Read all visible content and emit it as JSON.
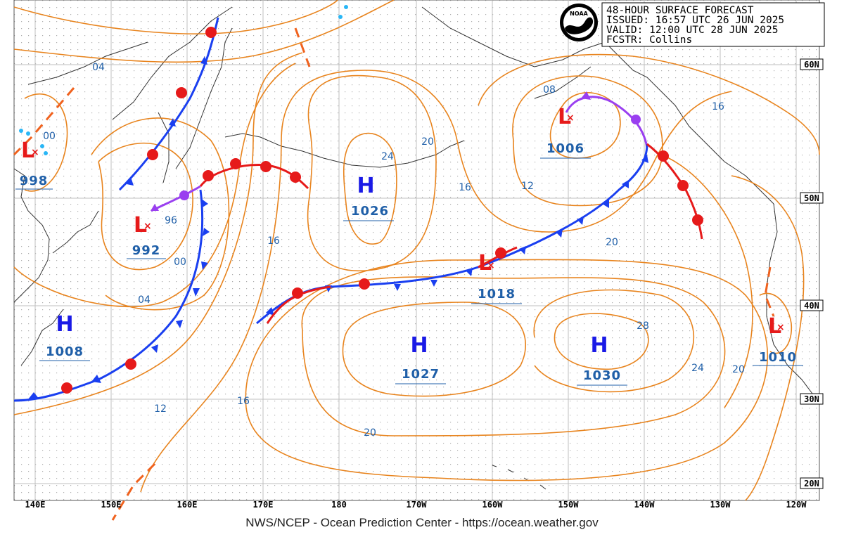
{
  "header": {
    "title": "48-HOUR SURFACE FORECAST",
    "issued": "ISSUED: 16:57 UTC 26 JUN 2025",
    "valid": "VALID:  12:00 UTC 28 JUN 2025",
    "forecaster": "FCSTR:  Collins",
    "logo_text": "NOAA"
  },
  "footer": {
    "credit": "NWS/NCEP - Ocean Prediction Center - https://ocean.weather.gov"
  },
  "grid": {
    "longitudes": [
      "140E",
      "150E",
      "160E",
      "170E",
      "180",
      "170W",
      "160W",
      "150W",
      "140W",
      "130W",
      "120W"
    ],
    "latitudes": [
      "60N",
      "50N",
      "40N",
      "30N",
      "20N"
    ]
  },
  "pressure_systems": [
    {
      "type": "L",
      "pressure": "998"
    },
    {
      "type": "L",
      "pressure": "992"
    },
    {
      "type": "H",
      "pressure": "1008"
    },
    {
      "type": "H",
      "pressure": "1026"
    },
    {
      "type": "H",
      "pressure": "1027"
    },
    {
      "type": "L",
      "pressure": "1018"
    },
    {
      "type": "L",
      "pressure": "1006"
    },
    {
      "type": "H",
      "pressure": "1030"
    },
    {
      "type": "L",
      "pressure": "1010"
    }
  ],
  "isobar_labels": [
    "04",
    "00",
    "96",
    "00",
    "04",
    "12",
    "16",
    "16",
    "24",
    "20",
    "16",
    "12",
    "08",
    "16",
    "20",
    "28",
    "24",
    "20",
    "20"
  ],
  "colors": {
    "isobar": "#e8841e",
    "high": "#1a1ae6",
    "low": "#e61a1a",
    "cold_front": "#1a3ff0",
    "warm_front": "#e61a1a",
    "occluded_front": "#9a3ff0",
    "trough": "#f0621e",
    "label_text": "#1f5fa8",
    "coast": "#333333"
  }
}
